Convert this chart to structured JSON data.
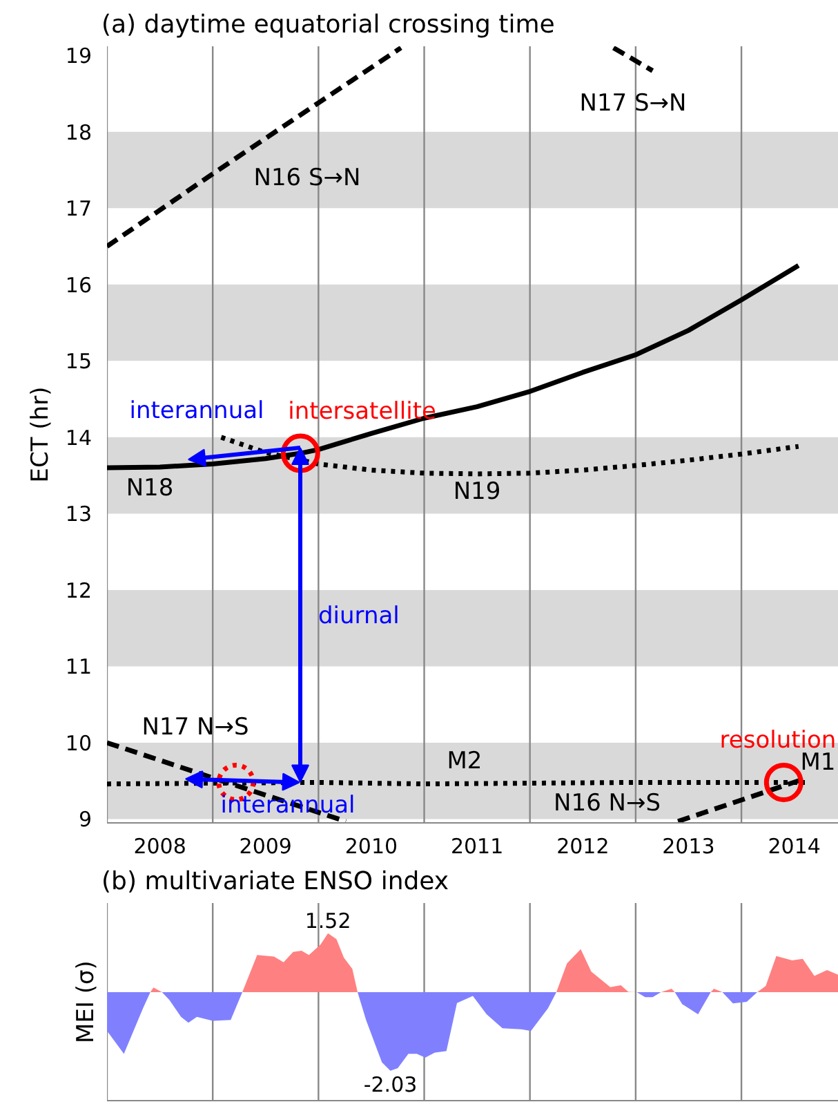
{
  "chart_data": [
    {
      "type": "line",
      "title": "(a) daytime equatorial crossing time",
      "ylabel": "ECT (hr)",
      "xlim": [
        2008,
        2014.92
      ],
      "ylim": [
        8.95,
        19.12
      ],
      "xticks": [
        {
          "value": 2008.5,
          "label": "2008"
        },
        {
          "value": 2009.5,
          "label": "2009"
        },
        {
          "value": 2010.5,
          "label": "2010"
        },
        {
          "value": 2011.5,
          "label": "2011"
        },
        {
          "value": 2012.5,
          "label": "2012"
        },
        {
          "value": 2013.5,
          "label": "2013"
        },
        {
          "value": 2014.5,
          "label": "2014"
        }
      ],
      "yticks": [
        9,
        10,
        11,
        12,
        13,
        14,
        15,
        16,
        17,
        18,
        19
      ],
      "grid": false,
      "bands": [
        {
          "axis": "y",
          "from": 9,
          "to": 10,
          "color": "#d9d9d9"
        },
        {
          "axis": "y",
          "from": 11,
          "to": 12,
          "color": "#d9d9d9"
        },
        {
          "axis": "y",
          "from": 13,
          "to": 14,
          "color": "#d9d9d9"
        },
        {
          "axis": "y",
          "from": 15,
          "to": 16,
          "color": "#d9d9d9"
        },
        {
          "axis": "y",
          "from": 17,
          "to": 18,
          "color": "#d9d9d9"
        }
      ],
      "ref_lines": [
        {
          "axis": "x",
          "value": 2008,
          "color": "#888888"
        },
        {
          "axis": "x",
          "value": 2009,
          "color": "#888888"
        },
        {
          "axis": "x",
          "value": 2010,
          "color": "#888888"
        },
        {
          "axis": "x",
          "value": 2011,
          "color": "#888888"
        },
        {
          "axis": "x",
          "value": 2012,
          "color": "#888888"
        },
        {
          "axis": "x",
          "value": 2013,
          "color": "#888888"
        },
        {
          "axis": "x",
          "value": 2014,
          "color": "#888888"
        }
      ],
      "series": [
        {
          "type": "line",
          "color": "#000000",
          "line_style": "solid",
          "x": [
            2008,
            2008.5,
            2009,
            2009.5,
            2009.83,
            2010,
            2010.5,
            2011,
            2011.5,
            2012,
            2012.5,
            2013,
            2013.5,
            2014,
            2014.54
          ],
          "values": [
            13.6,
            13.61,
            13.65,
            13.72,
            13.79,
            13.84,
            14.05,
            14.25,
            14.4,
            14.6,
            14.85,
            15.08,
            15.4,
            15.8,
            16.25
          ]
        },
        {
          "type": "line",
          "color": "#000000",
          "line_style": "dotted",
          "x": [
            2009.08,
            2009.5,
            2010,
            2010.5,
            2011,
            2011.5,
            2012,
            2012.5,
            2013,
            2013.5,
            2014,
            2014.54
          ],
          "values": [
            14.0,
            13.8,
            13.65,
            13.57,
            13.53,
            13.52,
            13.53,
            13.57,
            13.63,
            13.7,
            13.78,
            13.88
          ]
        },
        {
          "type": "line",
          "color": "#000000",
          "line_style": "dotted",
          "x": [
            2008,
            2009,
            2010,
            2011,
            2012,
            2013,
            2014,
            2014.6
          ],
          "values": [
            9.46,
            9.47,
            9.48,
            9.46,
            9.47,
            9.48,
            9.48,
            9.48
          ]
        },
        {
          "type": "line",
          "color": "#000000",
          "line_style": "dashed",
          "x": [
            2008,
            2009,
            2010.26
          ],
          "values": [
            10.0,
            9.54,
            8.97
          ]
        },
        {
          "type": "line",
          "color": "#000000",
          "line_style": "dashed",
          "x": [
            2013.4,
            2014.58
          ],
          "values": [
            8.97,
            9.52
          ]
        },
        {
          "type": "line",
          "color": "#000000",
          "line_style": "dashed",
          "x": [
            2008,
            2009,
            2010,
            2010.78
          ],
          "values": [
            16.5,
            17.45,
            18.38,
            19.1
          ]
        },
        {
          "type": "line",
          "color": "#000000",
          "line_style": "dashed",
          "x": [
            2012.79,
            2013.16
          ],
          "values": [
            19.1,
            18.8
          ]
        },
        {
          "type": "scatter",
          "name": "intersatellite",
          "color": "#ff0000",
          "marker": "circle",
          "line_style": "solid",
          "x": [
            2009.83
          ],
          "values": [
            13.79
          ]
        },
        {
          "type": "scatter",
          "name": "resolution",
          "color": "#ff0000",
          "marker": "circle",
          "line_style": "solid",
          "x": [
            2014.4
          ],
          "values": [
            9.48
          ]
        },
        {
          "type": "scatter",
          "color": "#ff0000",
          "marker": "circle",
          "line_style": "dotted",
          "x": [
            2009.22
          ],
          "values": [
            9.48
          ]
        }
      ],
      "annotations": [
        "interannual",
        "diurnal",
        {
          "text": "interannual",
          "x": 2009.82,
          "y": 9.48
        },
        "N16 S→N",
        "N17 S→N",
        "N18",
        "N19",
        "N17 N→S",
        "M2",
        "N16  N→S",
        "M1"
      ]
    },
    {
      "type": "area",
      "title": "(b) multivariate ENSO index",
      "ylabel": "MEI (σ)",
      "xlim": [
        2008,
        2014.92
      ],
      "ylim": [
        -2.8,
        2.3
      ],
      "grid": false,
      "ref_lines": [
        {
          "axis": "x",
          "value": 2008,
          "color": "#888888"
        },
        {
          "axis": "x",
          "value": 2009,
          "color": "#888888"
        },
        {
          "axis": "x",
          "value": 2010,
          "color": "#888888"
        },
        {
          "axis": "x",
          "value": 2011,
          "color": "#888888"
        },
        {
          "axis": "x",
          "value": 2012,
          "color": "#888888"
        },
        {
          "axis": "x",
          "value": 2013,
          "color": "#888888"
        },
        {
          "axis": "x",
          "value": 2014,
          "color": "#888888"
        }
      ],
      "x": [
        2008.0,
        2008.16,
        2008.34,
        2008.41,
        2008.44,
        2008.52,
        2008.59,
        2008.7,
        2008.77,
        2008.85,
        2009.0,
        2009.17,
        2009.28,
        2009.42,
        2009.58,
        2009.67,
        2009.76,
        2009.84,
        2009.91,
        2010.02,
        2010.09,
        2010.17,
        2010.24,
        2010.32,
        2010.37,
        2010.45,
        2010.55,
        2010.6,
        2010.68,
        2010.75,
        2010.85,
        2010.93,
        2011.01,
        2011.1,
        2011.21,
        2011.31,
        2011.46,
        2011.59,
        2011.74,
        2011.92,
        2012.01,
        2012.17,
        2012.25,
        2012.35,
        2012.48,
        2012.58,
        2012.76,
        2012.86,
        2012.93,
        2013.01,
        2013.09,
        2013.16,
        2013.24,
        2013.34,
        2013.37,
        2013.44,
        2013.59,
        2013.69,
        2013.71,
        2013.74,
        2013.82,
        2013.92,
        2014.05,
        2014.15,
        2014.23,
        2014.33,
        2014.48,
        2014.58,
        2014.69,
        2014.81,
        2014.92
      ],
      "series": [
        {
          "color": "#ff8080",
          "values": [
            null,
            null,
            null,
            0,
            0.12,
            0,
            null,
            null,
            null,
            null,
            null,
            null,
            0,
            0.96,
            0.92,
            0.77,
            1.04,
            1.07,
            0.96,
            1.23,
            1.52,
            1.37,
            0.89,
            0.6,
            0,
            null,
            null,
            null,
            null,
            null,
            null,
            null,
            null,
            null,
            null,
            null,
            null,
            null,
            null,
            null,
            null,
            null,
            0,
            0.74,
            1.11,
            0.53,
            0.13,
            0.18,
            0.01,
            0,
            null,
            null,
            0,
            0.09,
            0,
            null,
            null,
            null,
            0,
            0.09,
            0,
            null,
            null,
            0,
            0.16,
            0.93,
            0.82,
            0.86,
            0.42,
            0.57,
            0.44
          ],
          "value_labels": [
            null,
            null,
            null,
            null,
            null,
            null,
            null,
            null,
            null,
            null,
            null,
            null,
            null,
            null,
            null,
            null,
            null,
            null,
            null,
            null,
            "1.52",
            null,
            null,
            null,
            null,
            null,
            null,
            null,
            null,
            null,
            null,
            null,
            null,
            null,
            null,
            null,
            null,
            null,
            null,
            null,
            null,
            null,
            null,
            null,
            null,
            null,
            null,
            null,
            null,
            null,
            null,
            null,
            null,
            null,
            null,
            null,
            null,
            null,
            null,
            null,
            null,
            null,
            null,
            null,
            null,
            null,
            null,
            null,
            null,
            null,
            null
          ]
        },
        {
          "color": "#8080ff",
          "values": [
            -1.0,
            -1.59,
            -0.42,
            0,
            null,
            0,
            -0.2,
            -0.64,
            -0.79,
            -0.64,
            -0.74,
            -0.72,
            0,
            null,
            null,
            null,
            null,
            null,
            null,
            null,
            null,
            null,
            null,
            null,
            0,
            -0.72,
            -1.45,
            -1.81,
            -2.03,
            -1.96,
            -1.59,
            -1.59,
            -1.69,
            -1.56,
            -1.52,
            -0.28,
            -0.1,
            -0.57,
            -0.93,
            -0.96,
            -1.0,
            -0.42,
            0,
            null,
            null,
            null,
            null,
            null,
            null,
            0,
            -0.13,
            -0.13,
            0,
            null,
            0,
            -0.31,
            -0.57,
            -0.1,
            0,
            null,
            0,
            -0.29,
            -0.25,
            0,
            null,
            null,
            null,
            null,
            null,
            null,
            null
          ],
          "value_labels": [
            null,
            null,
            null,
            null,
            null,
            null,
            null,
            null,
            null,
            null,
            null,
            null,
            null,
            null,
            null,
            null,
            null,
            null,
            null,
            null,
            null,
            null,
            null,
            null,
            null,
            null,
            null,
            null,
            "-2.03",
            null,
            null,
            null,
            null,
            null,
            null,
            null,
            null,
            null,
            null,
            null,
            null,
            null,
            null,
            null,
            null,
            null,
            null,
            null,
            null,
            null,
            null,
            null,
            null,
            null,
            null,
            null,
            null,
            null,
            null,
            null,
            null,
            null,
            null,
            null,
            null,
            null,
            null,
            null,
            null,
            null,
            null
          ]
        }
      ]
    }
  ]
}
